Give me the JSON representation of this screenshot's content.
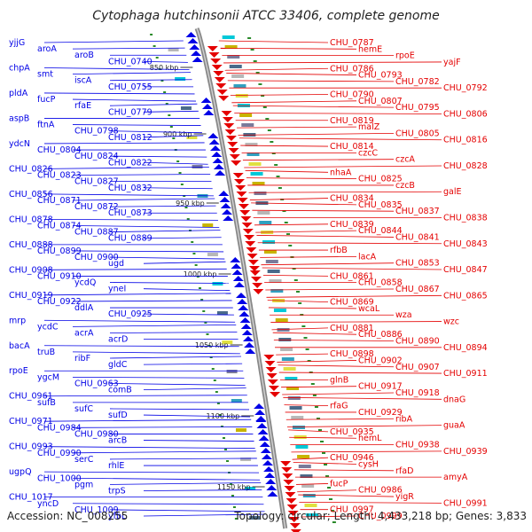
{
  "title": "Cytophaga hutchinsonii ATCC 33406, complete genome",
  "accession": "Accession: NC_008255",
  "topology": "Topology: circular; Length: 4,433,218 bp; Genes: 3,833",
  "colors": {
    "forward": "#e40000",
    "reverse": "#0000e6",
    "backbone": "#888888",
    "tick": "#2a8a2a"
  },
  "scale_ticks": [
    "850 kbp",
    "900 kbp",
    "950 kbp",
    "1000 kbp",
    "1050 kbp",
    "1100 kbp",
    "1150 kbp"
  ],
  "left_genes": [
    "yjjG",
    "aroA",
    "aroB",
    "CHU_0740",
    "chpA",
    "smt",
    "iscA",
    "CHU_0755",
    "pldA",
    "fucP",
    "rfaE",
    "CHU_0779",
    "aspB",
    "ftnA",
    "CHU_0798",
    "CHU_0812",
    "ydcN",
    "CHU_0804",
    "CHU_0824",
    "CHU_0822",
    "CHU_0826",
    "CHU_0823",
    "CHU_0827",
    "CHU_0832",
    "CHU_0856",
    "CHU_0871",
    "CHU_0872",
    "CHU_0873",
    "CHU_0878",
    "CHU_0874",
    "CHU_0887",
    "CHU_0889",
    "CHU_0888",
    "CHU_0899",
    "CHU_0900",
    "ugd",
    "CHU_0908",
    "CHU_0910",
    "ycdQ",
    "yneI",
    "CHU_0919",
    "CHU_0922",
    "ddlA",
    "CHU_0925",
    "mrp",
    "ycdC",
    "acrA",
    "acrD",
    "bacA",
    "truB",
    "ribF",
    "gldC",
    "rpoE",
    "ygcM",
    "CHU_0963",
    "comB",
    "CHU_0961",
    "sufB",
    "sufC",
    "sufD",
    "CHU_0971",
    "CHU_0984",
    "CHU_0980",
    "arcB",
    "CHU_0993",
    "CHU_0990",
    "serC",
    "rhlE",
    "ugpQ",
    "CHU_1000",
    "pgm",
    "trpS",
    "CHU_1017",
    "yncD",
    "CHU_1009",
    "yfbL"
  ],
  "right_genes": [
    "CHU_0787",
    "hemE",
    "rpoE",
    "yajF",
    "CHU_0786",
    "CHU_0793",
    "CHU_0782",
    "CHU_0792",
    "CHU_0790",
    "CHU_0807",
    "CHU_0795",
    "CHU_0806",
    "CHU_0819",
    "malZ",
    "CHU_0805",
    "CHU_0816",
    "CHU_0814",
    "czcC",
    "czcA",
    "CHU_0828",
    "nhaA",
    "CHU_0825",
    "czcB",
    "galE",
    "CHU_0834",
    "CHU_0835",
    "CHU_0837",
    "CHU_0838",
    "CHU_0839",
    "CHU_0844",
    "CHU_0841",
    "CHU_0843",
    "rfbB",
    "lacA",
    "CHU_0853",
    "CHU_0847",
    "CHU_0861",
    "CHU_0858",
    "CHU_0867",
    "CHU_0865",
    "CHU_0869",
    "wcaL",
    "wza",
    "wzc",
    "CHU_0881",
    "CHU_0886",
    "CHU_0890",
    "CHU_0894",
    "CHU_0898",
    "CHU_0902",
    "CHU_0907",
    "CHU_0911",
    "glnB",
    "CHU_0917",
    "CHU_0918",
    "dnaG",
    "rfaG",
    "CHU_0929",
    "ribA",
    "guaA",
    "CHU_0935",
    "hemL",
    "CHU_0938",
    "CHU_0939",
    "CHU_0946",
    "cysH",
    "rfaD",
    "amyA",
    "fucP",
    "CHU_0986",
    "yigR",
    "CHU_0991",
    "CHU_0997",
    "CHU_0999"
  ]
}
